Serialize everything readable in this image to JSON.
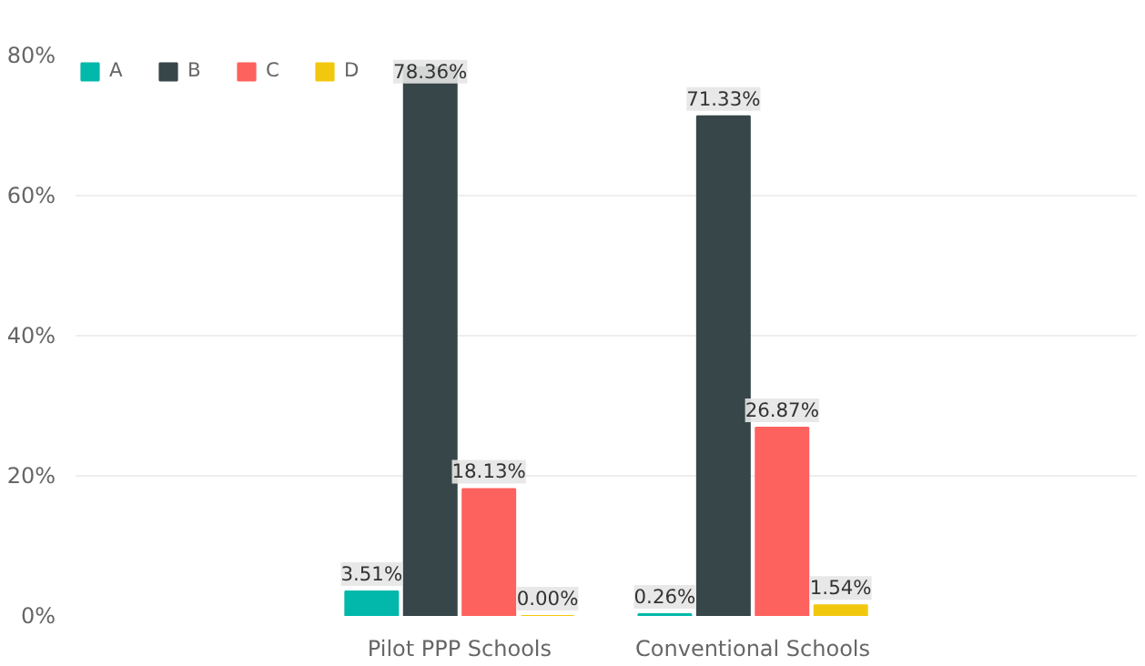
{
  "chart_data": {
    "type": "bar",
    "categories": [
      "Pilot PPP Schools",
      "Conventional Schools"
    ],
    "series": [
      {
        "name": "A",
        "color": "#01b8aa",
        "values": [
          3.51,
          0.26
        ],
        "value_labels": [
          "3.51%",
          "0.26%"
        ]
      },
      {
        "name": "B",
        "color": "#374649",
        "values": [
          78.36,
          71.33
        ],
        "value_labels": [
          "78.36%",
          "71.33%"
        ]
      },
      {
        "name": "C",
        "color": "#fd625e",
        "values": [
          18.13,
          26.87
        ],
        "value_labels": [
          "18.13%",
          "26.87%"
        ]
      },
      {
        "name": "D",
        "color": "#f2c80f",
        "values": [
          0.0,
          1.54
        ],
        "value_labels": [
          "0.00%",
          "1.54%"
        ]
      }
    ],
    "ylim": [
      0,
      80
    ],
    "yticks": [
      {
        "value": 0,
        "label": "0%"
      },
      {
        "value": 20,
        "label": "20%"
      },
      {
        "value": 40,
        "label": "40%"
      },
      {
        "value": 60,
        "label": "60%"
      },
      {
        "value": 80,
        "label": "80%"
      }
    ],
    "grid": "y",
    "legend": "top left"
  }
}
